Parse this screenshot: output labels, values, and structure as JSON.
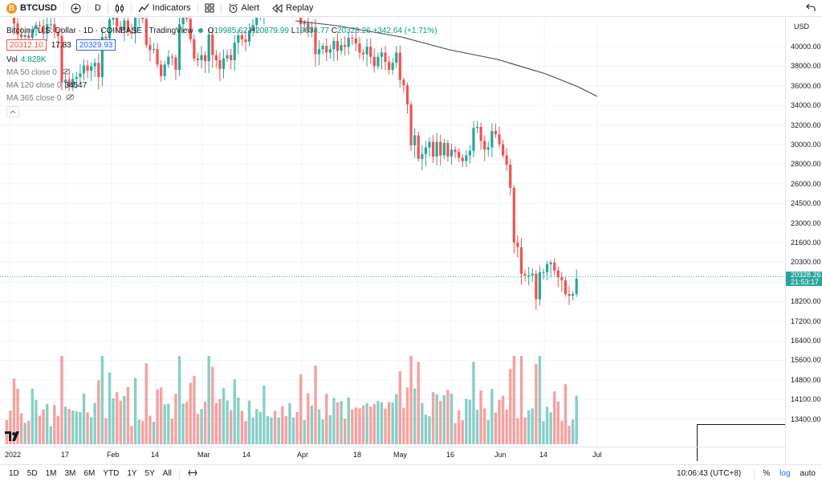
{
  "toolbar": {
    "symbol": "BTCUSD",
    "symbol_badge": "B",
    "add_symbol_icon": "plus-circle-icon",
    "interval": "D",
    "chart_type_icon": "candles-icon",
    "indicators_label": "Indicators",
    "layouts_icon": "grid-icon",
    "alert_label": "Alert",
    "replay_label": "Replay",
    "undo_icon": "undo-icon"
  },
  "legend": {
    "title": "Bitcoin / U.S. Dollar · 1D · COINBASE · TradingView",
    "o_key": "O",
    "o_val": "19985.62",
    "h_key": "H",
    "h_val": "20879.99",
    "l_key": "L",
    "l_val": "19634.77",
    "c_key": "C",
    "c_val": "20328.26",
    "change": "+342.64 (+1.71%)",
    "bid": "20312.10",
    "spread": "17.83",
    "ask": "20329.93",
    "vol_label": "Vol",
    "vol_value": "4.828K",
    "ma50_label": "MA 50 close 0",
    "ma120_label": "MA 120 close 0",
    "ma120_value": "34547",
    "ma365_label": "MA 365 close 0"
  },
  "price_scale": {
    "currency": "USD",
    "labels": [
      "40000.00",
      "38000.00",
      "36000.00",
      "34000.00",
      "32000.00",
      "30000.00",
      "28000.00",
      "26000.00",
      "24500.00",
      "23000.00",
      "21600.00",
      "20300.00",
      "19400.00",
      "18200.00",
      "17200.00",
      "16400.00",
      "15600.00",
      "14800.00",
      "14100.00",
      "13400.00"
    ],
    "last_price": "20328.26",
    "countdown": "21:53:17"
  },
  "time_axis": {
    "labels": [
      "2022",
      "17",
      "Feb",
      "14",
      "Mar",
      "14",
      "Apr",
      "18",
      "May",
      "16",
      "Jun",
      "14",
      "Jul"
    ]
  },
  "bottombar": {
    "ranges": [
      "1D",
      "5D",
      "1M",
      "3M",
      "6M",
      "YTD",
      "1Y",
      "5Y",
      "All"
    ],
    "goto_icon": "calendar-range-icon",
    "clock": "10:06:43 (UTC+8)",
    "percent": "%",
    "log": "log",
    "auto": "auto"
  },
  "colors": {
    "up": "#26a69a",
    "down": "#ef5350",
    "ma": "#434651",
    "accent": "#2962ff"
  },
  "chart_data": {
    "type": "candlestick",
    "title": "Bitcoin / U.S. Dollar · 1D · COINBASE · TradingView",
    "ylim": [
      17200,
      41000
    ],
    "closes": [
      46200,
      45700,
      43300,
      41900,
      41600,
      41800,
      41500,
      42600,
      43100,
      43000,
      42000,
      43200,
      43200,
      42200,
      41700,
      36300,
      36600,
      35800,
      36700,
      36900,
      37300,
      38200,
      37600,
      38100,
      38500,
      36900,
      41600,
      41400,
      43800,
      44400,
      42900,
      42500,
      43700,
      42200,
      42000,
      44100,
      44400,
      43900,
      40600,
      40000,
      40100,
      38300,
      37000,
      38300,
      39200,
      39100,
      37700,
      43200,
      44400,
      43900,
      41300,
      39000,
      38800,
      39400,
      38700,
      41900,
      39400,
      38800,
      37800,
      39000,
      39400,
      38800,
      40900,
      41800,
      41300,
      41000,
      42400,
      43100,
      44300,
      44500,
      46800,
      47100,
      47400,
      47000,
      47100,
      46300,
      45500,
      46400,
      46600,
      45500,
      43200,
      43400,
      42200,
      42800,
      39500,
      40100,
      40500,
      39700,
      40100,
      41100,
      39900,
      40600,
      40400,
      41500,
      41400,
      40800,
      39700,
      39500,
      40400,
      39200,
      38100,
      39200,
      39700,
      38600,
      37700,
      38500,
      39700,
      36600,
      36000,
      34000,
      30100,
      31000,
      28900,
      29300,
      29900,
      30400,
      29100,
      30400,
      29200,
      30300,
      29100,
      29700,
      29500,
      29000,
      28700,
      29200,
      29600,
      31700,
      31800,
      30500,
      29700,
      29900,
      31400,
      31100,
      30200,
      29200,
      28400,
      26500,
      22500,
      22200,
      20500,
      20400,
      20400,
      20500,
      19000,
      20600,
      20600,
      21100,
      21200,
      20700,
      20300,
      20100,
      19300,
      19200,
      19300,
      20200
    ],
    "ma_series_name": "MA 120 close 0",
    "ma_last": 34547,
    "last": 20328.26
  }
}
